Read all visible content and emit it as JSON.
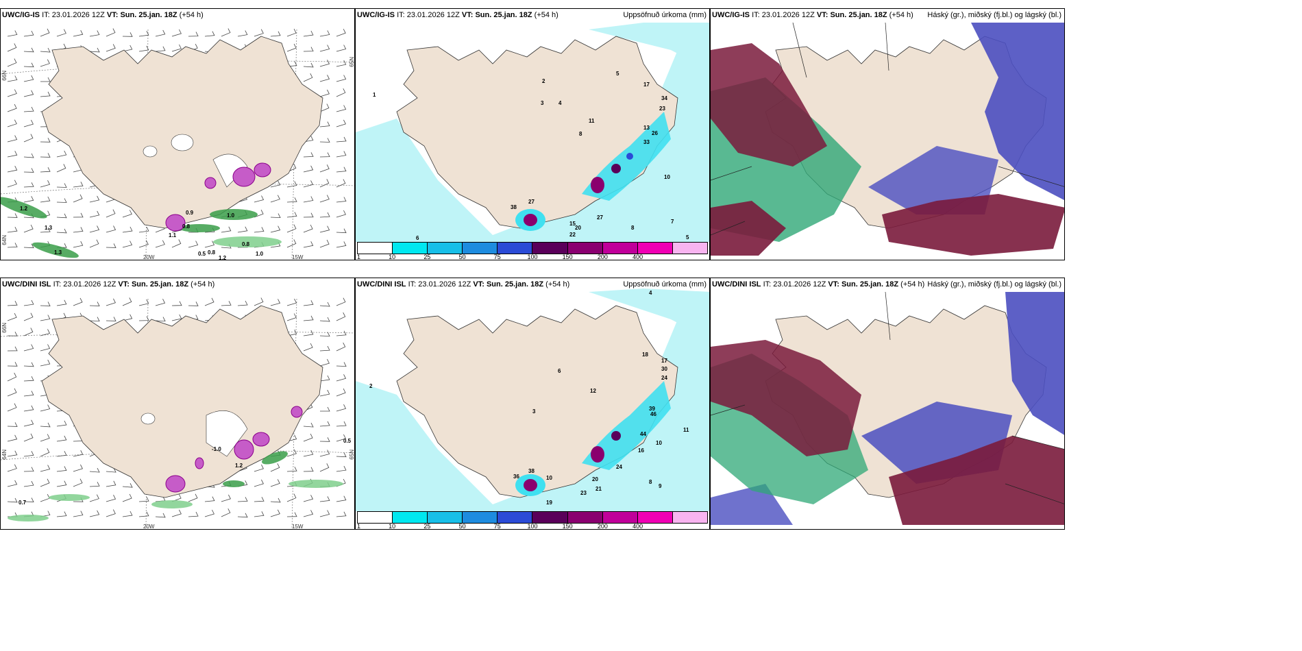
{
  "rows": [
    {
      "model": "UWC/IG-IS",
      "it_label": "IT:",
      "it_value": "23.01.2026 12Z",
      "vt_label": "VT:",
      "vt_value": "Sun. 25.jan. 18Z",
      "lead": "(+54 h)"
    },
    {
      "model": "UWC/DINI ISL",
      "it_label": "IT:",
      "it_value": "23.01.2026 12Z",
      "vt_label": "VT:",
      "vt_value": "Sun. 25.jan. 18Z",
      "lead": "(+54 h)"
    }
  ],
  "labels": {
    "precip": "Uppsöfnuð úrkoma (mm)",
    "cloud": "Háský (gr.), miðský (fj.bl.) og lágský (bl.)"
  },
  "axis": {
    "lon_20": "20W",
    "lon_15": "15W",
    "lat_66": "66N",
    "lat_64": "64N",
    "lat_65": "65N",
    "lat_65r": "65N",
    "lat_64r": "64N"
  },
  "legend": {
    "colors": [
      "#ffffff",
      "#00e8f0",
      "#18bfe8",
      "#1e8cdf",
      "#2b4bd6",
      "#5a005a",
      "#8a0070",
      "#c0009a",
      "#f000b4",
      "#f8b4f0"
    ],
    "ticks": [
      "1",
      "10",
      "25",
      "50",
      "75",
      "100",
      "150",
      "200",
      "400"
    ]
  },
  "colors": {
    "land": "#efe2d4",
    "precip_light": "#bff4f7",
    "precip_mid": "#40e0f0",
    "precip_high": "#8a006e",
    "cloud_high": "#7a1b3c",
    "cloud_mid": "#4b4fc0",
    "cloud_low": "#2fa877"
  },
  "precip_numbers_top": [
    "1",
    "2",
    "3",
    "4",
    "5",
    "6",
    "8",
    "11",
    "13",
    "17",
    "23",
    "26",
    "33",
    "34",
    "38",
    "27",
    "15",
    "20",
    "22",
    "27",
    "10",
    "7",
    "5",
    "8"
  ],
  "precip_numbers_bottom": [
    "4",
    "2",
    "3",
    "6",
    "12",
    "18",
    "17",
    "30",
    "24",
    "39",
    "46",
    "44",
    "10",
    "11",
    "16",
    "20",
    "24",
    "21",
    "23",
    "19",
    "9",
    "8",
    "38",
    "36",
    "10"
  ],
  "wind_numbers_top": [
    "1.2",
    "1.3",
    "1.3",
    "0.9",
    "0.8",
    "1.0",
    "0.5",
    "0.8",
    "1.2",
    "1.0",
    "0.8",
    "1.1"
  ],
  "wind_numbers_bottom": [
    "0.5",
    "-1.0",
    "0.7",
    "1.2"
  ]
}
